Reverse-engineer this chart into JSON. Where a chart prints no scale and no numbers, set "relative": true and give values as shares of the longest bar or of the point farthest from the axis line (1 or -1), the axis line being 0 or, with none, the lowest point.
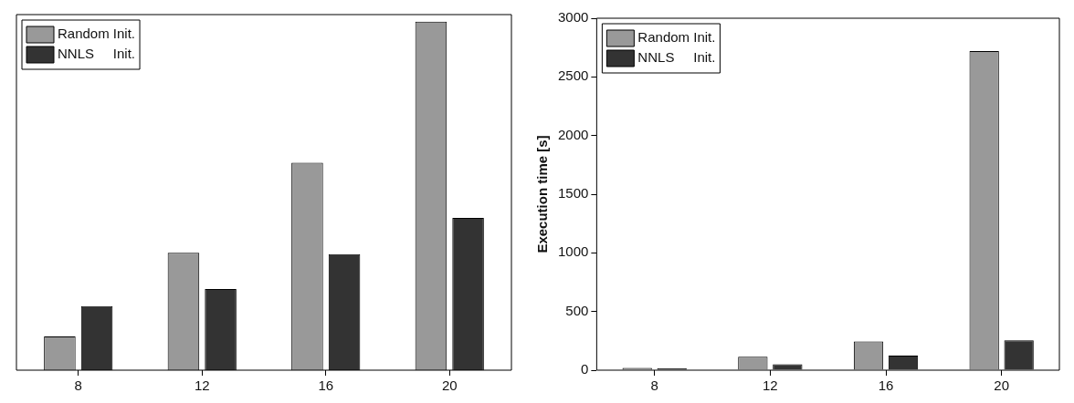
{
  "chart_data": [
    {
      "type": "bar",
      "relative": true,
      "tick_labels": "x",
      "legend": "top left",
      "grid": false,
      "categories": [
        "8",
        "12",
        "16",
        "20"
      ],
      "series": [
        {
          "name": "Random Init.",
          "color": "#999999",
          "values": [
            0.097,
            0.337,
            0.595,
            1
          ]
        },
        {
          "name": "NNLS     Init.",
          "color": "#333333",
          "values": [
            0.184,
            0.233,
            0.333,
            0.437
          ]
        }
      ]
    },
    {
      "type": "bar",
      "ylabel": "Execution time [s]",
      "legend": "top left",
      "grid": false,
      "categories": [
        "8",
        "12",
        "16",
        "20"
      ],
      "ylim": [
        0,
        3000
      ],
      "yticks": [
        0,
        500,
        1000,
        1500,
        2000,
        2500,
        3000
      ],
      "series": [
        {
          "name": "Random Init.",
          "color": "#999999",
          "values": [
            20,
            115,
            245,
            2720
          ]
        },
        {
          "name": "NNLS     Init.",
          "color": "#333333",
          "values": [
            15,
            50,
            125,
            255
          ]
        }
      ]
    }
  ]
}
